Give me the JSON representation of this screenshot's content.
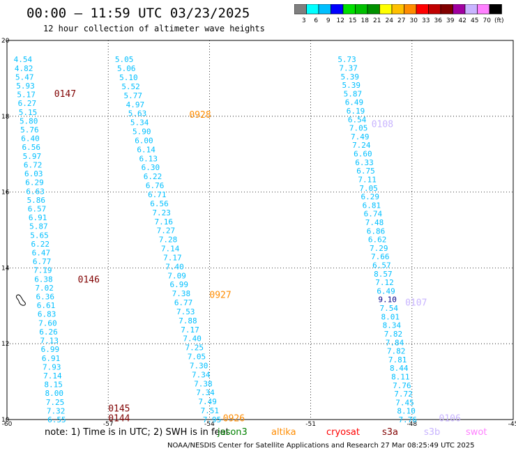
{
  "title": "00:00 – 11:59 UTC 03/23/2025",
  "subtitle": "12 hour collection of altimeter wave heights",
  "colorbar": {
    "labels": [
      "3",
      "6",
      "9",
      "12",
      "15",
      "18",
      "21",
      "24",
      "27",
      "30",
      "33",
      "36",
      "39",
      "42",
      "45",
      "70",
      "(ft)"
    ],
    "colors": [
      "#7f7f7f",
      "#00ffff",
      "#00bfff",
      "#0000ff",
      "#00e000",
      "#00c000",
      "#009000",
      "#ffff00",
      "#ffc000",
      "#ff8c00",
      "#ff0000",
      "#c00000",
      "#800000",
      "#a000a0",
      "#c8b4ff",
      "#ff80ff",
      "#000000"
    ]
  },
  "axes": {
    "lon_labels": [
      "-60",
      "-57",
      "-54",
      "-51",
      "-48",
      "-45"
    ],
    "lat_labels": [
      "20",
      "18",
      "16",
      "14",
      "12",
      "10"
    ],
    "lon_range": [
      -60,
      -45
    ],
    "lat_range": [
      10,
      20
    ],
    "grid": true
  },
  "tracks": [
    {
      "color": "#00bfff",
      "lons": [
        -59.8,
        -58.8
      ],
      "values": [
        "4.54",
        "4.82",
        "5.47",
        "5.93",
        "5.17",
        "6.27",
        "5.15",
        "5.80",
        "5.76",
        "6.40",
        "6.56",
        "5.97",
        "6.72",
        "6.03",
        "6.29",
        "6.63",
        "5.86",
        "6.57",
        "6.91",
        "5.87",
        "5.65",
        "6.22",
        "6.47",
        "6.77",
        "7.19",
        "6.38",
        "7.02",
        "6.36",
        "6.61",
        "6.83",
        "7.60",
        "6.26",
        "7.13",
        "6.99",
        "6.91",
        "7.93",
        "7.14",
        "8.15",
        "8.00",
        "7.25",
        "7.32",
        "6.55"
      ],
      "lats_top": 19.5,
      "lats_bottom": 10.0
    },
    {
      "color": "#00bfff",
      "lons": [
        -56.8,
        -54.2
      ],
      "values": [
        "5.05",
        "5.06",
        "5.10",
        "5.52",
        "5.77",
        "4.97",
        "5.63",
        "5.34",
        "5.90",
        "6.00",
        "6.14",
        "6.13",
        "6.30",
        "6.22",
        "6.76",
        "6.71",
        "6.56",
        "7.23",
        "7.16",
        "7.27",
        "7.28",
        "7.14",
        "7.17",
        "7.40",
        "7.09",
        "6.99",
        "7.38",
        "6.77",
        "7.53",
        "7.88",
        "7.17",
        "7.40",
        "7.25",
        "7.05",
        "7.30",
        "7.34",
        "7.38",
        "7.34",
        "7.49",
        "7.51",
        "7.95"
      ],
      "lats_top": 19.5,
      "lats_bottom": 10.0
    },
    {
      "color": "#00bfff",
      "lons": [
        -50.2,
        -48.4
      ],
      "values": [
        "5.73",
        "7.37",
        "5.39",
        "5.39",
        "5.87",
        "6.49",
        "6.19",
        "6.54",
        "7.05",
        "7.49",
        "7.24",
        "6.60",
        "6.33",
        "6.75",
        "7.11",
        "7.05",
        "6.29",
        "6.81",
        "6.74",
        "7.48",
        "6.86",
        "6.62",
        "7.29",
        "7.66",
        "6.57",
        "8.57",
        "7.12",
        "6.49",
        "9.10",
        "7.54",
        "8.01",
        "8.34",
        "7.82",
        "7.84",
        "7.82",
        "7.81",
        "8.44",
        "8.11",
        "7.76",
        "7.72",
        "7.45",
        "8.10",
        "7.76"
      ],
      "lats_top": 19.5,
      "lats_bottom": 10.0,
      "special": {
        "index": 28,
        "color": "#00008b"
      }
    }
  ],
  "passes": [
    {
      "label": "0147",
      "color": "#800000",
      "lon": -58.6,
      "lat": 18.6
    },
    {
      "label": "0146",
      "color": "#800000",
      "lon": -57.9,
      "lat": 13.7
    },
    {
      "label": "0145",
      "color": "#800000",
      "lon": -57.0,
      "lat": 10.3
    },
    {
      "label": "0144",
      "color": "#800000",
      "lon": -57.0,
      "lat": 10.05
    },
    {
      "label": "0928",
      "color": "#ff8c00",
      "lon": -54.6,
      "lat": 18.05
    },
    {
      "label": "0927",
      "color": "#ff8c00",
      "lon": -54.0,
      "lat": 13.3
    },
    {
      "label": "0926",
      "color": "#ff8c00",
      "lon": -53.6,
      "lat": 10.05
    },
    {
      "label": "0108",
      "color": "#c8b4ff",
      "lon": -49.2,
      "lat": 17.8
    },
    {
      "label": "0107",
      "color": "#c8b4ff",
      "lon": -48.2,
      "lat": 13.1
    },
    {
      "label": "0106",
      "color": "#c8b4ff",
      "lon": -47.2,
      "lat": 10.05
    }
  ],
  "note": "note: 1) Time is in UTC; 2) SWH is in feet",
  "satellites": [
    {
      "name": "jason3",
      "color": "#008000"
    },
    {
      "name": "altika",
      "color": "#ff8c00"
    },
    {
      "name": "cryosat",
      "color": "#ff0000"
    },
    {
      "name": "s3a",
      "color": "#800000"
    },
    {
      "name": "s3b",
      "color": "#c8b4ff"
    },
    {
      "name": "swot",
      "color": "#ff80ff"
    }
  ],
  "credit": "NOAA/NESDIS Center for Satellite Applications and Research   27 Mar 08:25:49 UTC 2025"
}
